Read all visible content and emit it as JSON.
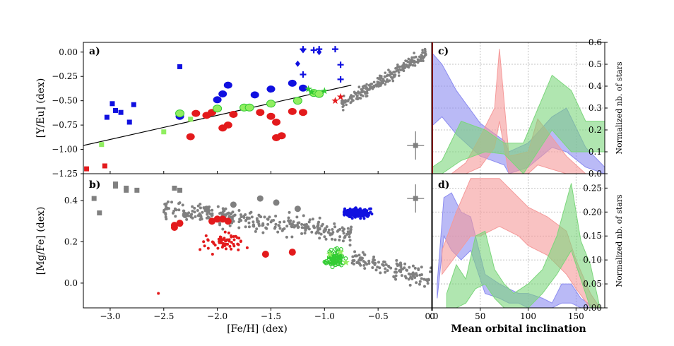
{
  "colors": {
    "red": "#e31a1c",
    "blue": "#1010e0",
    "green": "#33cc33",
    "lightgreen": "#90ee60",
    "gray": "#808080",
    "fill_blue": "#8c8cf0",
    "fill_red": "#f59a9a",
    "fill_green": "#7cd67c"
  },
  "chart_data": [
    {
      "type": "scatter",
      "panel": "a)",
      "ylabel": "[Y/Eu] (dex)",
      "xlim": [
        -3.25,
        0.0
      ],
      "ylim": [
        -1.25,
        0.1
      ],
      "yticks": [
        "0.00",
        "−0.25",
        "−0.50",
        "−0.75",
        "−1.00",
        "−1.25"
      ],
      "fit_line": {
        "x": [
          -3.25,
          -0.75
        ],
        "y": [
          -0.96,
          -0.34
        ]
      },
      "series": [
        {
          "name": "red large dots",
          "marker": "circle",
          "color": "red",
          "points": [
            [
              -2.25,
              -0.87
            ],
            [
              -2.2,
              -0.63
            ],
            [
              -2.1,
              -0.65
            ],
            [
              -2.05,
              -0.62
            ],
            [
              -1.95,
              -0.78
            ],
            [
              -1.9,
              -0.75
            ],
            [
              -1.85,
              -0.64
            ],
            [
              -1.6,
              -0.62
            ],
            [
              -1.5,
              -0.66
            ],
            [
              -1.45,
              -0.72
            ],
            [
              -1.45,
              -0.88
            ],
            [
              -1.4,
              -0.86
            ],
            [
              -1.3,
              -0.61
            ],
            [
              -1.2,
              -0.62
            ]
          ]
        },
        {
          "name": "red stars",
          "marker": "star",
          "color": "red",
          "points": [
            [
              -0.9,
              -0.5
            ],
            [
              -0.85,
              -0.46
            ]
          ]
        },
        {
          "name": "red squares",
          "marker": "square",
          "color": "red",
          "points": [
            [
              -3.22,
              -1.2
            ],
            [
              -3.05,
              -1.17
            ]
          ]
        },
        {
          "name": "blue large dots",
          "marker": "circle",
          "color": "blue",
          "points": [
            [
              -2.35,
              -0.66
            ],
            [
              -2.0,
              -0.49
            ],
            [
              -1.95,
              -0.43
            ],
            [
              -1.9,
              -0.34
            ],
            [
              -1.65,
              -0.44
            ],
            [
              -1.5,
              -0.38
            ],
            [
              -1.3,
              -0.32
            ],
            [
              -1.2,
              -0.37
            ]
          ]
        },
        {
          "name": "blue squares",
          "marker": "square",
          "color": "blue",
          "points": [
            [
              -3.03,
              -0.67
            ],
            [
              -2.98,
              -0.53
            ],
            [
              -2.95,
              -0.6
            ],
            [
              -2.9,
              -0.62
            ],
            [
              -2.82,
              -0.72
            ],
            [
              -2.78,
              -0.54
            ],
            [
              -2.35,
              -0.15
            ]
          ]
        },
        {
          "name": "blue plus",
          "marker": "plus",
          "color": "blue",
          "points": [
            [
              -1.2,
              0.03
            ],
            [
              -1.1,
              0.02
            ],
            [
              -1.05,
              0.03
            ],
            [
              -0.9,
              0.03
            ],
            [
              -0.85,
              -0.13
            ],
            [
              -0.85,
              -0.28
            ],
            [
              -1.2,
              -0.23
            ]
          ]
        },
        {
          "name": "blue diamonds",
          "marker": "diamond",
          "color": "blue",
          "points": [
            [
              -1.2,
              0.02
            ],
            [
              -1.05,
              0.0
            ],
            [
              -1.25,
              -0.12
            ]
          ]
        },
        {
          "name": "light green dots",
          "marker": "circle",
          "color": "lightgreen",
          "points": [
            [
              -2.35,
              -0.63
            ],
            [
              -2.0,
              -0.58
            ],
            [
              -1.75,
              -0.57
            ],
            [
              -1.7,
              -0.57
            ],
            [
              -1.5,
              -0.53
            ],
            [
              -1.25,
              -0.5
            ],
            [
              -1.1,
              -0.42
            ],
            [
              -1.05,
              -0.43
            ]
          ]
        },
        {
          "name": "light green squares",
          "marker": "square",
          "color": "lightgreen",
          "points": [
            [
              -3.08,
              -0.95
            ],
            [
              -2.5,
              -0.82
            ],
            [
              -2.25,
              -0.69
            ]
          ]
        },
        {
          "name": "green stars",
          "marker": "star",
          "color": "green",
          "points": [
            [
              -1.15,
              -0.38
            ],
            [
              -1.12,
              -0.41
            ],
            [
              -1.0,
              -0.4
            ]
          ]
        },
        {
          "name": "gray errorbar",
          "marker": "square",
          "color": "gray",
          "points": [
            [
              -0.15,
              -0.96
            ]
          ]
        }
      ],
      "gray_cloud": {
        "x_range": [
          -0.85,
          -0.05
        ],
        "y_range": [
          -0.55,
          0.05
        ],
        "count": 240
      }
    },
    {
      "type": "scatter",
      "panel": "b)",
      "xlabel": "[Fe/H] (dex)",
      "ylabel": "[Mg/Fe] (dex)",
      "xlim": [
        -3.25,
        0.0
      ],
      "ylim": [
        -0.12,
        0.53
      ],
      "xticks": [
        "−3.0",
        "−2.5",
        "−2.0",
        "−1.5",
        "−1.0",
        "−0.5",
        "0.0"
      ],
      "yticks": [
        "0.4",
        "0.2",
        "0.0"
      ],
      "series": [
        {
          "name": "gray squares",
          "marker": "square",
          "color": "gray",
          "points": [
            [
              -3.15,
              0.41
            ],
            [
              -3.1,
              0.34
            ],
            [
              -2.95,
              0.47
            ],
            [
              -2.95,
              0.48
            ],
            [
              -2.85,
              0.46
            ],
            [
              -2.85,
              0.45
            ],
            [
              -2.75,
              0.45
            ],
            [
              -2.4,
              0.46
            ],
            [
              -2.35,
              0.45
            ],
            [
              -0.15,
              0.41
            ]
          ]
        },
        {
          "name": "red large dots",
          "marker": "circle",
          "color": "red",
          "points": [
            [
              -2.4,
              0.28
            ],
            [
              -2.4,
              0.27
            ],
            [
              -2.35,
              0.29
            ],
            [
              -2.05,
              0.3
            ],
            [
              -2.0,
              0.31
            ],
            [
              -1.95,
              0.31
            ],
            [
              -1.9,
              0.3
            ],
            [
              -1.3,
              0.15
            ],
            [
              -1.55,
              0.14
            ]
          ]
        }
      ],
      "clusters": [
        {
          "name": "gray cloud",
          "color": "gray",
          "center": [
            -1.3,
            0.3
          ],
          "count": 420
        },
        {
          "name": "red cloud",
          "color": "red",
          "center": [
            -1.95,
            0.2
          ],
          "count": 60
        },
        {
          "name": "blue cloud",
          "color": "blue",
          "center": [
            -0.7,
            0.34
          ],
          "count": 260
        },
        {
          "name": "green cloud",
          "color": "lightgreen",
          "center": [
            -0.9,
            0.12
          ],
          "count": 80
        }
      ]
    },
    {
      "type": "area",
      "panel": "c)",
      "ylabel": "Normalized nb. of stars",
      "xlim": [
        0,
        180
      ],
      "ylim": [
        0,
        0.6
      ],
      "yticks": [
        "0.0",
        "0.1",
        "0.2",
        "0.3",
        "0.4",
        "0.5",
        "0.6"
      ],
      "series": [
        {
          "name": "blue band",
          "color": "fill_blue",
          "x": [
            0,
            10,
            25,
            50,
            75,
            80,
            100,
            125,
            140,
            160,
            180
          ],
          "upper": [
            0.55,
            0.5,
            0.38,
            0.23,
            0.15,
            0.1,
            0.14,
            0.26,
            0.3,
            0.12,
            0.03
          ],
          "lower": [
            0.22,
            0.26,
            0.18,
            0.08,
            0.04,
            0.0,
            0.03,
            0.12,
            0.1,
            0.03,
            0.0
          ]
        },
        {
          "name": "red band",
          "color": "fill_red",
          "x": [
            20,
            35,
            50,
            65,
            70,
            80,
            100,
            110,
            140,
            160
          ],
          "upper": [
            0.0,
            0.05,
            0.17,
            0.3,
            0.57,
            0.08,
            0.1,
            0.25,
            0.08,
            0.0
          ],
          "lower": [
            0.0,
            0.0,
            0.03,
            0.12,
            0.24,
            0.0,
            0.0,
            0.04,
            0.0,
            0.0
          ]
        },
        {
          "name": "green band",
          "color": "fill_green",
          "x": [
            0,
            10,
            30,
            55,
            75,
            95,
            125,
            145,
            160,
            180
          ],
          "upper": [
            0.03,
            0.06,
            0.24,
            0.2,
            0.14,
            0.14,
            0.45,
            0.38,
            0.24,
            0.24
          ],
          "lower": [
            0.0,
            0.0,
            0.06,
            0.1,
            0.09,
            0.0,
            0.2,
            0.1,
            0.1,
            0.1
          ]
        }
      ]
    },
    {
      "type": "area",
      "panel": "d)",
      "xlabel": "Mean orbital inclination",
      "ylabel": "Normalized nb. of stars",
      "xlim": [
        0,
        180
      ],
      "ylim": [
        0,
        0.28
      ],
      "xticks": [
        "0",
        "50",
        "100",
        "150"
      ],
      "yticks": [
        "0.00",
        "0.05",
        "0.10",
        "0.15",
        "0.20",
        "0.25"
      ],
      "series": [
        {
          "name": "blue band",
          "color": "fill_blue",
          "x": [
            5,
            12,
            20,
            30,
            40,
            55,
            70,
            80,
            90,
            100,
            115,
            125,
            135,
            145,
            155,
            170
          ],
          "upper": [
            0.05,
            0.23,
            0.24,
            0.2,
            0.19,
            0.07,
            0.05,
            0.04,
            0.03,
            0.03,
            0.02,
            0.01,
            0.05,
            0.05,
            0.02,
            0.0
          ],
          "lower": [
            0.02,
            0.15,
            0.12,
            0.1,
            0.12,
            0.03,
            0.02,
            0.01,
            0.01,
            0.0,
            0.0,
            0.0,
            0.01,
            0.01,
            0.0,
            0.0
          ]
        },
        {
          "name": "red band",
          "color": "fill_red",
          "x": [
            10,
            25,
            40,
            50,
            70,
            90,
            100,
            120,
            140,
            150,
            165,
            175
          ],
          "upper": [
            0.12,
            0.2,
            0.27,
            0.27,
            0.27,
            0.23,
            0.21,
            0.19,
            0.16,
            0.1,
            0.03,
            0.0
          ],
          "lower": [
            0.07,
            0.11,
            0.15,
            0.15,
            0.17,
            0.15,
            0.13,
            0.11,
            0.07,
            0.04,
            0.0,
            0.0
          ]
        },
        {
          "name": "green band",
          "color": "fill_green",
          "x": [
            15,
            25,
            35,
            45,
            55,
            65,
            75,
            85,
            100,
            115,
            130,
            145,
            155,
            165,
            175
          ],
          "upper": [
            0.03,
            0.09,
            0.06,
            0.15,
            0.16,
            0.08,
            0.05,
            0.03,
            0.05,
            0.08,
            0.15,
            0.26,
            0.14,
            0.09,
            0.0
          ],
          "lower": [
            0.0,
            0.0,
            0.01,
            0.04,
            0.05,
            0.02,
            0.0,
            0.0,
            0.0,
            0.03,
            0.07,
            0.12,
            0.06,
            0.0,
            0.0
          ]
        }
      ]
    }
  ]
}
